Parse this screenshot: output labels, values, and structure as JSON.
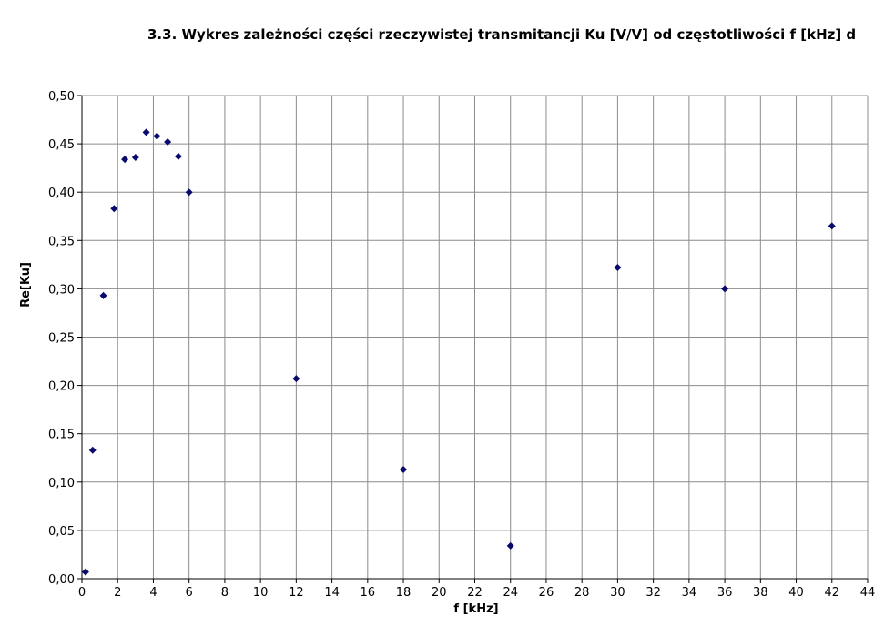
{
  "chart_data": {
    "type": "scatter",
    "title": "3.3. Wykres zależności części rzeczywistej transmitancji Ku [V/V] od częstotliwości f [kHz] d",
    "xlabel": "f [kHz]",
    "ylabel": "Re[Ku]",
    "xlim": [
      0,
      44
    ],
    "ylim": [
      0,
      0.5
    ],
    "xticks": [
      0,
      2,
      4,
      6,
      8,
      10,
      12,
      14,
      16,
      18,
      20,
      22,
      24,
      26,
      28,
      30,
      32,
      34,
      36,
      38,
      40,
      42,
      44
    ],
    "xtick_labels": [
      "0",
      "2",
      "4",
      "6",
      "8",
      "10",
      "12",
      "14",
      "16",
      "18",
      "20",
      "22",
      "24",
      "26",
      "28",
      "30",
      "32",
      "34",
      "36",
      "38",
      "40",
      "42",
      "44"
    ],
    "yticks": [
      0,
      0.05,
      0.1,
      0.15,
      0.2,
      0.25,
      0.3,
      0.35,
      0.4,
      0.45,
      0.5
    ],
    "ytick_labels": [
      "0,00",
      "0,05",
      "0,10",
      "0,15",
      "0,20",
      "0,25",
      "0,30",
      "0,35",
      "0,40",
      "0,45",
      "0,50"
    ],
    "grid": true,
    "legend": "none",
    "marker": "diamond",
    "marker_color": "#0a0a6e",
    "series": [
      {
        "x": [
          0.2,
          0.6,
          1.2,
          1.8,
          2.4,
          3.0,
          3.6,
          4.2,
          4.8,
          5.4,
          6.0,
          12,
          18,
          24,
          30,
          36,
          42
        ],
        "y": [
          0.007,
          0.133,
          0.293,
          0.383,
          0.434,
          0.436,
          0.462,
          0.458,
          0.452,
          0.437,
          0.4,
          0.207,
          0.113,
          0.034,
          0.322,
          0.3,
          0.365
        ]
      }
    ]
  }
}
